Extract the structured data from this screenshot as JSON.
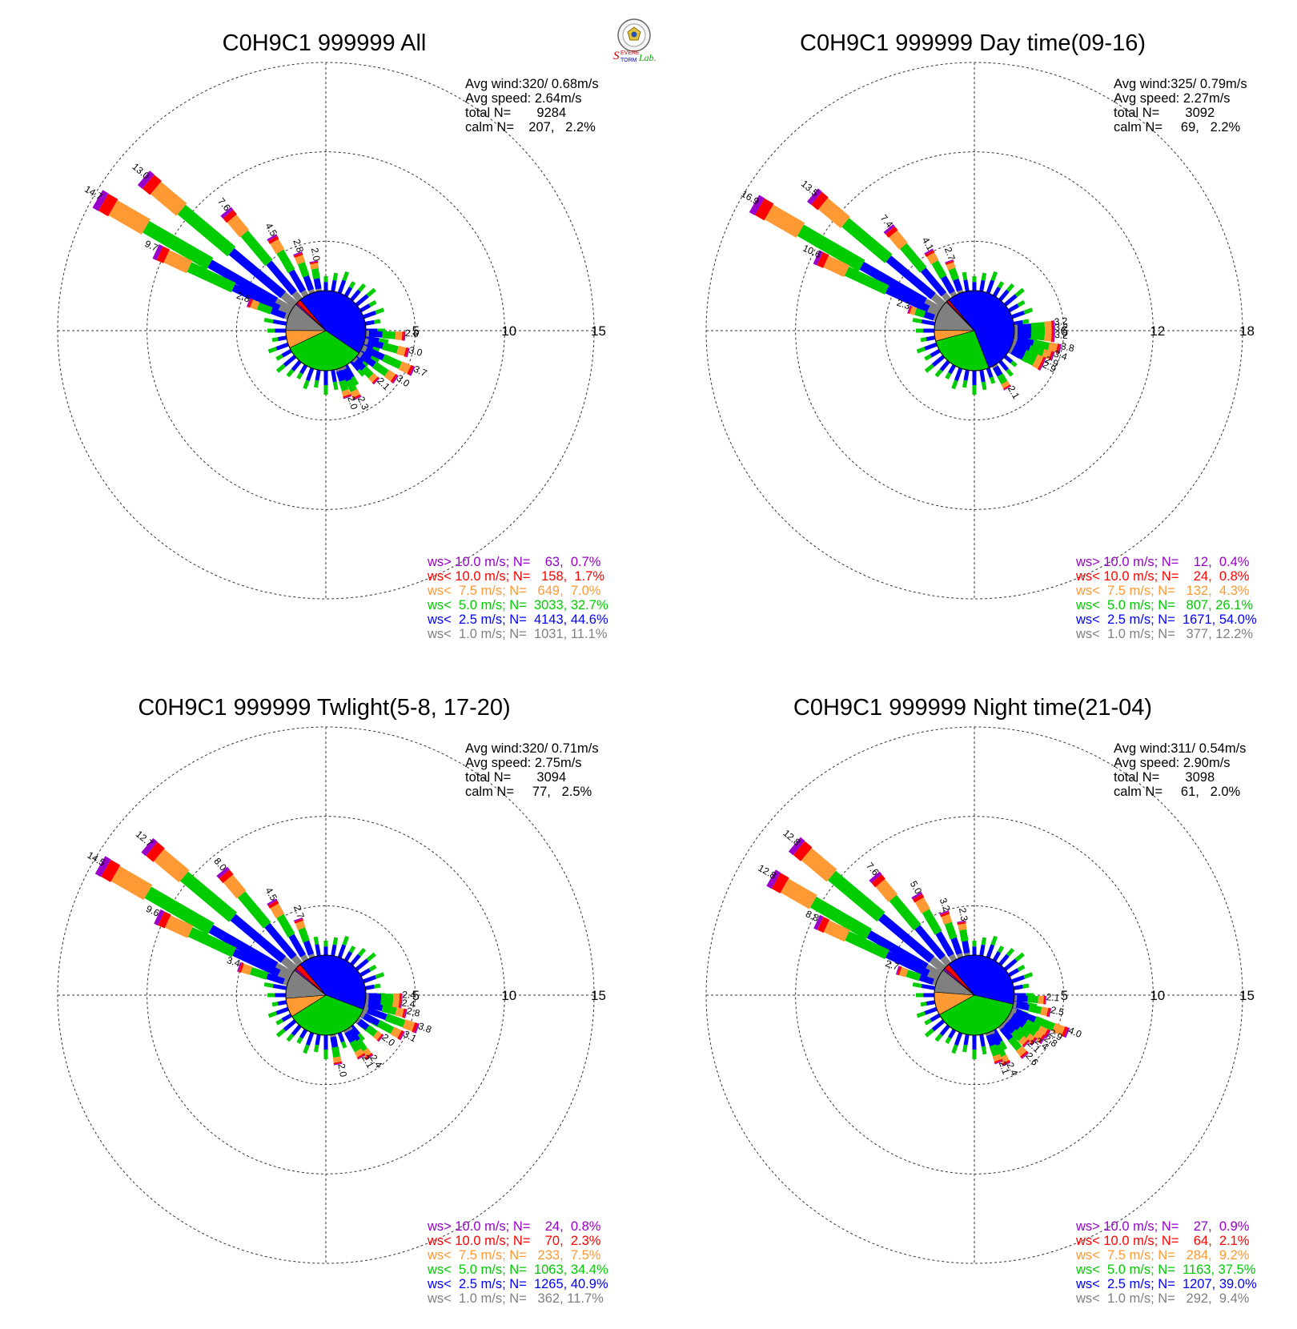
{
  "logo": {
    "seal_text": "",
    "brand": "Severe Storm Lab."
  },
  "colors": {
    "gt10": "#9900cc",
    "lt10": "#ff0000",
    "lt75": "#ff9933",
    "lt5": "#00cc00",
    "lt25": "#0000ff",
    "lt1": "#808080"
  },
  "chart_data": [
    {
      "type": "windrose",
      "title": "C0H9C1 999999 All",
      "stats": {
        "avg_wind": "Avg wind:320/ 0.68m/s",
        "avg_speed": "Avg speed: 2.64m/s",
        "total": "total N=       9284",
        "calm": "calm N=    207,   2.2%"
      },
      "rings": [
        5,
        10,
        15
      ],
      "ring_labels": [
        "5",
        "10",
        "15"
      ],
      "legend": [
        {
          "text": "ws> 10.0 m/s; N=    63,  0.7%",
          "color_key": "gt10"
        },
        {
          "text": "ws< 10.0 m/s; N=   158,  1.7%",
          "color_key": "lt10"
        },
        {
          "text": "ws<  7.5 m/s; N=   649,  7.0%",
          "color_key": "lt75"
        },
        {
          "text": "ws<  5.0 m/s; N=  3033, 32.7%",
          "color_key": "lt5"
        },
        {
          "text": "ws<  2.5 m/s; N=  4143, 44.6%",
          "color_key": "lt25"
        },
        {
          "text": "ws<  1.0 m/s; N=  1031, 11.1%",
          "color_key": "lt1"
        }
      ],
      "pie": [
        44.6,
        32.7,
        7.0,
        11.1,
        0.7,
        1.7
      ],
      "bars": [
        {
          "dir": 300,
          "total": 14.7,
          "label": "14.7"
        },
        {
          "dir": 310,
          "total": 13.0,
          "label": "13.0"
        },
        {
          "dir": 295,
          "total": 9.7,
          "label": "9.7"
        },
        {
          "dir": 320,
          "total": 7.6,
          "label": "7.6"
        },
        {
          "dir": 330,
          "total": 4.5,
          "label": "4.5"
        },
        {
          "dir": 340,
          "total": 2.8,
          "label": "2.8"
        },
        {
          "dir": 350,
          "total": 2.0,
          "label": "2.0"
        },
        {
          "dir": 290,
          "total": 2.8,
          "label": "2.8"
        },
        {
          "dir": 94,
          "total": 2.6,
          "label": "2.6"
        },
        {
          "dir": 105,
          "total": 3.0,
          "label": "3.0"
        },
        {
          "dir": 115,
          "total": 3.7,
          "label": "3.7"
        },
        {
          "dir": 125,
          "total": 3.0,
          "label": "3.0"
        },
        {
          "dir": 135,
          "total": 2.1,
          "label": "2.1"
        },
        {
          "dir": 155,
          "total": 2.3,
          "label": "2.3"
        },
        {
          "dir": 162,
          "total": 2.0,
          "label": "2.0"
        }
      ]
    },
    {
      "type": "windrose",
      "title": "C0H9C1 999999 Day time(09-16)",
      "stats": {
        "avg_wind": "Avg wind:325/ 0.79m/s",
        "avg_speed": "Avg speed: 2.27m/s",
        "total": "total N=       3092",
        "calm": "calm N=     69,   2.2%"
      },
      "rings": [
        6,
        12,
        18
      ],
      "ring_labels": [
        "6",
        "12",
        "18"
      ],
      "legend": [
        {
          "text": "ws> 10.0 m/s; N=    12,  0.4%",
          "color_key": "gt10"
        },
        {
          "text": "ws< 10.0 m/s; N=    24,  0.8%",
          "color_key": "lt10"
        },
        {
          "text": "ws<  7.5 m/s; N=   132,  4.3%",
          "color_key": "lt75"
        },
        {
          "text": "ws<  5.0 m/s; N=   807, 26.1%",
          "color_key": "lt5"
        },
        {
          "text": "ws<  2.5 m/s; N=  1671, 54.0%",
          "color_key": "lt25"
        },
        {
          "text": "ws<  1.0 m/s; N=   377, 12.2%",
          "color_key": "lt1"
        }
      ],
      "pie": [
        54.0,
        26.1,
        4.3,
        12.2,
        0.4,
        0.8
      ],
      "bars": [
        {
          "dir": 300,
          "total": 16.9,
          "label": "16.9"
        },
        {
          "dir": 310,
          "total": 13.5,
          "label": "13.5"
        },
        {
          "dir": 295,
          "total": 10.6,
          "label": "10.6"
        },
        {
          "dir": 320,
          "total": 7.4,
          "label": "7.4"
        },
        {
          "dir": 330,
          "total": 4.1,
          "label": "4.1"
        },
        {
          "dir": 340,
          "total": 2.7,
          "label": "2.7"
        },
        {
          "dir": 288,
          "total": 2.3,
          "label": "2.3"
        },
        {
          "dir": 86,
          "total": 3.2,
          "label": "3.2"
        },
        {
          "dir": 90,
          "total": 3.2,
          "label": "3.2"
        },
        {
          "dir": 95,
          "total": 3.2,
          "label": "3.2"
        },
        {
          "dir": 102,
          "total": 3.8,
          "label": "3.8"
        },
        {
          "dir": 108,
          "total": 3.4,
          "label": "3.4"
        },
        {
          "dir": 114,
          "total": 2.9,
          "label": "2.9"
        },
        {
          "dir": 118,
          "total": 2.9,
          "label": "2.9"
        },
        {
          "dir": 150,
          "total": 2.1,
          "label": "2.1"
        }
      ]
    },
    {
      "type": "windrose",
      "title": "C0H9C1 999999 Twlight(5-8, 17-20)",
      "stats": {
        "avg_wind": "Avg wind:320/ 0.71m/s",
        "avg_speed": "Avg speed: 2.75m/s",
        "total": "total N=       3094",
        "calm": "calm N=     77,   2.5%"
      },
      "rings": [
        5,
        10,
        15
      ],
      "ring_labels": [
        "5",
        "10",
        "15"
      ],
      "legend": [
        {
          "text": "ws> 10.0 m/s; N=    24,  0.8%",
          "color_key": "gt10"
        },
        {
          "text": "ws< 10.0 m/s; N=    70,  2.3%",
          "color_key": "lt10"
        },
        {
          "text": "ws<  7.5 m/s; N=   233,  7.5%",
          "color_key": "lt75"
        },
        {
          "text": "ws<  5.0 m/s; N=  1063, 34.4%",
          "color_key": "lt5"
        },
        {
          "text": "ws<  2.5 m/s; N=  1265, 40.9%",
          "color_key": "lt25"
        },
        {
          "text": "ws<  1.0 m/s; N=   362, 11.7%",
          "color_key": "lt1"
        }
      ],
      "pie": [
        40.9,
        34.4,
        7.5,
        11.7,
        0.8,
        2.3
      ],
      "bars": [
        {
          "dir": 300,
          "total": 14.5,
          "label": "14.5"
        },
        {
          "dir": 310,
          "total": 12.7,
          "label": "12.7"
        },
        {
          "dir": 295,
          "total": 9.6,
          "label": "9.6"
        },
        {
          "dir": 320,
          "total": 8.0,
          "label": "8.0"
        },
        {
          "dir": 330,
          "total": 4.5,
          "label": "4.5"
        },
        {
          "dir": 340,
          "total": 2.7,
          "label": "2.7"
        },
        {
          "dir": 288,
          "total": 3.4,
          "label": "3.4"
        },
        {
          "dir": 92,
          "total": 2.4,
          "label": "2.4"
        },
        {
          "dir": 98,
          "total": 2.4,
          "label": "2.4"
        },
        {
          "dir": 103,
          "total": 2.8,
          "label": "2.8"
        },
        {
          "dir": 110,
          "total": 3.8,
          "label": "3.8"
        },
        {
          "dir": 118,
          "total": 3.1,
          "label": "3.1"
        },
        {
          "dir": 128,
          "total": 2.0,
          "label": "2.0"
        },
        {
          "dir": 145,
          "total": 2.4,
          "label": "2.4"
        },
        {
          "dir": 150,
          "total": 2.1,
          "label": "2.1"
        },
        {
          "dir": 170,
          "total": 2.0,
          "label": "2.0"
        }
      ]
    },
    {
      "type": "windrose",
      "title": "C0H9C1 999999 Night time(21-04)",
      "stats": {
        "avg_wind": "Avg wind:311/ 0.54m/s",
        "avg_speed": "Avg speed: 2.90m/s",
        "total": "total N=       3098",
        "calm": "calm N=     61,   2.0%"
      },
      "rings": [
        5,
        10,
        15
      ],
      "ring_labels": [
        "5",
        "10",
        "15"
      ],
      "legend": [
        {
          "text": "ws> 10.0 m/s; N=    27,  0.9%",
          "color_key": "gt10"
        },
        {
          "text": "ws< 10.0 m/s; N=    64,  2.1%",
          "color_key": "lt10"
        },
        {
          "text": "ws<  7.5 m/s; N=   284,  9.2%",
          "color_key": "lt75"
        },
        {
          "text": "ws<  5.0 m/s; N=  1163, 37.5%",
          "color_key": "lt5"
        },
        {
          "text": "ws<  2.5 m/s; N=  1207, 39.0%",
          "color_key": "lt25"
        },
        {
          "text": "ws<  1.0 m/s; N=   292,  9.4%",
          "color_key": "lt1"
        }
      ],
      "pie": [
        39.0,
        37.5,
        9.2,
        9.4,
        0.9,
        2.1
      ],
      "bars": [
        {
          "dir": 300,
          "total": 12.8,
          "label": "12.8"
        },
        {
          "dir": 310,
          "total": 12.8,
          "label": "12.8"
        },
        {
          "dir": 295,
          "total": 8.8,
          "label": "8.8"
        },
        {
          "dir": 320,
          "total": 7.6,
          "label": "7.6"
        },
        {
          "dir": 330,
          "total": 5.0,
          "label": "5.0"
        },
        {
          "dir": 340,
          "total": 3.2,
          "label": "3.2"
        },
        {
          "dir": 350,
          "total": 2.3,
          "label": "2.3"
        },
        {
          "dir": 288,
          "total": 2.7,
          "label": "2.7"
        },
        {
          "dir": 94,
          "total": 2.1,
          "label": "2.1"
        },
        {
          "dir": 103,
          "total": 2.5,
          "label": "2.5"
        },
        {
          "dir": 112,
          "total": 4.0,
          "label": "4.0"
        },
        {
          "dir": 118,
          "total": 2.9,
          "label": "2.9"
        },
        {
          "dir": 123,
          "total": 2.8,
          "label": "2.8"
        },
        {
          "dir": 128,
          "total": 2.4,
          "label": "2.4"
        },
        {
          "dir": 133,
          "total": 2.1,
          "label": "2.1"
        },
        {
          "dir": 140,
          "total": 2.6,
          "label": "2.6"
        },
        {
          "dir": 155,
          "total": 2.4,
          "label": "2.4"
        },
        {
          "dir": 160,
          "total": 2.1,
          "label": "2.1"
        }
      ]
    }
  ]
}
